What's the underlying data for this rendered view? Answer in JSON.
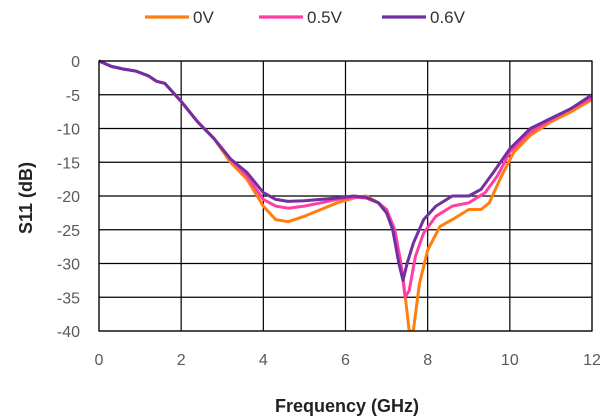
{
  "chart_data": {
    "type": "line",
    "title": "",
    "xlabel": "Frequency (GHz)",
    "ylabel": "S11 (dB)",
    "xlim": [
      0,
      12
    ],
    "ylim": [
      -40,
      0
    ],
    "x_ticks": [
      0,
      2,
      4,
      6,
      8,
      10,
      12
    ],
    "y_ticks": [
      0,
      -5,
      -10,
      -15,
      -20,
      -25,
      -30,
      -35,
      -40
    ],
    "x_tick_labels": [
      "0",
      "2",
      "4",
      "6",
      "8",
      "10",
      "12"
    ],
    "y_tick_labels": [
      "0",
      "-5",
      "-10",
      "-15",
      "-20",
      "-25",
      "-30",
      "-35",
      "-40"
    ],
    "grid": true,
    "legend_position": "top",
    "series": [
      {
        "name": "0V",
        "color": "#ff7f0e",
        "x": [
          0,
          0.3,
          0.6,
          0.9,
          1.2,
          1.4,
          1.6,
          2.0,
          2.4,
          2.8,
          3.2,
          3.6,
          4.0,
          4.3,
          4.6,
          5.0,
          5.4,
          5.8,
          6.2,
          6.5,
          6.8,
          7.0,
          7.2,
          7.4,
          7.55,
          7.65,
          7.8,
          8.0,
          8.3,
          8.6,
          9.0,
          9.3,
          9.5,
          9.8,
          10.1,
          10.5,
          11.0,
          11.5,
          12.0
        ],
        "y": [
          0,
          -0.8,
          -1.2,
          -1.5,
          -2.2,
          -3.0,
          -3.3,
          -6.0,
          -9.0,
          -11.5,
          -15.0,
          -17.5,
          -21.5,
          -23.5,
          -23.8,
          -23.0,
          -22.0,
          -21.0,
          -20.3,
          -20.0,
          -21.0,
          -22.5,
          -25.5,
          -32.0,
          -40.0,
          -40.0,
          -33.0,
          -28.0,
          -24.5,
          -23.5,
          -22.0,
          -22.0,
          -21.0,
          -17.0,
          -13.5,
          -11.0,
          -9.0,
          -7.5,
          -5.7
        ]
      },
      {
        "name": "0.5V",
        "color": "#ff3ea5",
        "x": [
          0,
          0.3,
          0.6,
          0.9,
          1.2,
          1.4,
          1.6,
          2.0,
          2.4,
          2.8,
          3.2,
          3.6,
          4.0,
          4.3,
          4.6,
          5.0,
          5.4,
          5.8,
          6.2,
          6.5,
          6.8,
          7.0,
          7.2,
          7.35,
          7.45,
          7.55,
          7.7,
          7.9,
          8.2,
          8.6,
          9.0,
          9.4,
          9.7,
          10.0,
          10.5,
          11.0,
          11.5,
          12.0
        ],
        "y": [
          0,
          -0.8,
          -1.2,
          -1.5,
          -2.2,
          -3.0,
          -3.3,
          -6.0,
          -9.0,
          -11.5,
          -14.5,
          -17.0,
          -20.5,
          -21.5,
          -21.8,
          -21.5,
          -21.0,
          -20.5,
          -20.2,
          -20.3,
          -21.0,
          -22.0,
          -25.0,
          -30.0,
          -35.0,
          -34.0,
          -29.0,
          -25.5,
          -23.0,
          -21.5,
          -21.0,
          -19.5,
          -17.0,
          -13.5,
          -10.5,
          -8.7,
          -7.0,
          -5.5
        ]
      },
      {
        "name": "0.6V",
        "color": "#7030a0",
        "x": [
          0,
          0.3,
          0.6,
          0.9,
          1.2,
          1.4,
          1.6,
          2.0,
          2.4,
          2.8,
          3.2,
          3.6,
          4.0,
          4.3,
          4.6,
          5.0,
          5.4,
          5.8,
          6.2,
          6.5,
          6.8,
          7.0,
          7.15,
          7.3,
          7.4,
          7.5,
          7.65,
          7.9,
          8.2,
          8.6,
          9.0,
          9.3,
          9.6,
          10.0,
          10.5,
          11.0,
          11.5,
          12.0
        ],
        "y": [
          0,
          -0.8,
          -1.2,
          -1.5,
          -2.2,
          -3.0,
          -3.3,
          -6.0,
          -9.0,
          -11.5,
          -14.5,
          -16.5,
          -19.5,
          -20.5,
          -20.8,
          -20.7,
          -20.5,
          -20.3,
          -20.0,
          -20.2,
          -21.0,
          -22.5,
          -25.0,
          -30.0,
          -32.5,
          -30.0,
          -27.0,
          -23.5,
          -21.5,
          -20.0,
          -20.0,
          -19.0,
          -16.5,
          -13.0,
          -10.0,
          -8.5,
          -7.0,
          -5.0
        ]
      }
    ]
  }
}
